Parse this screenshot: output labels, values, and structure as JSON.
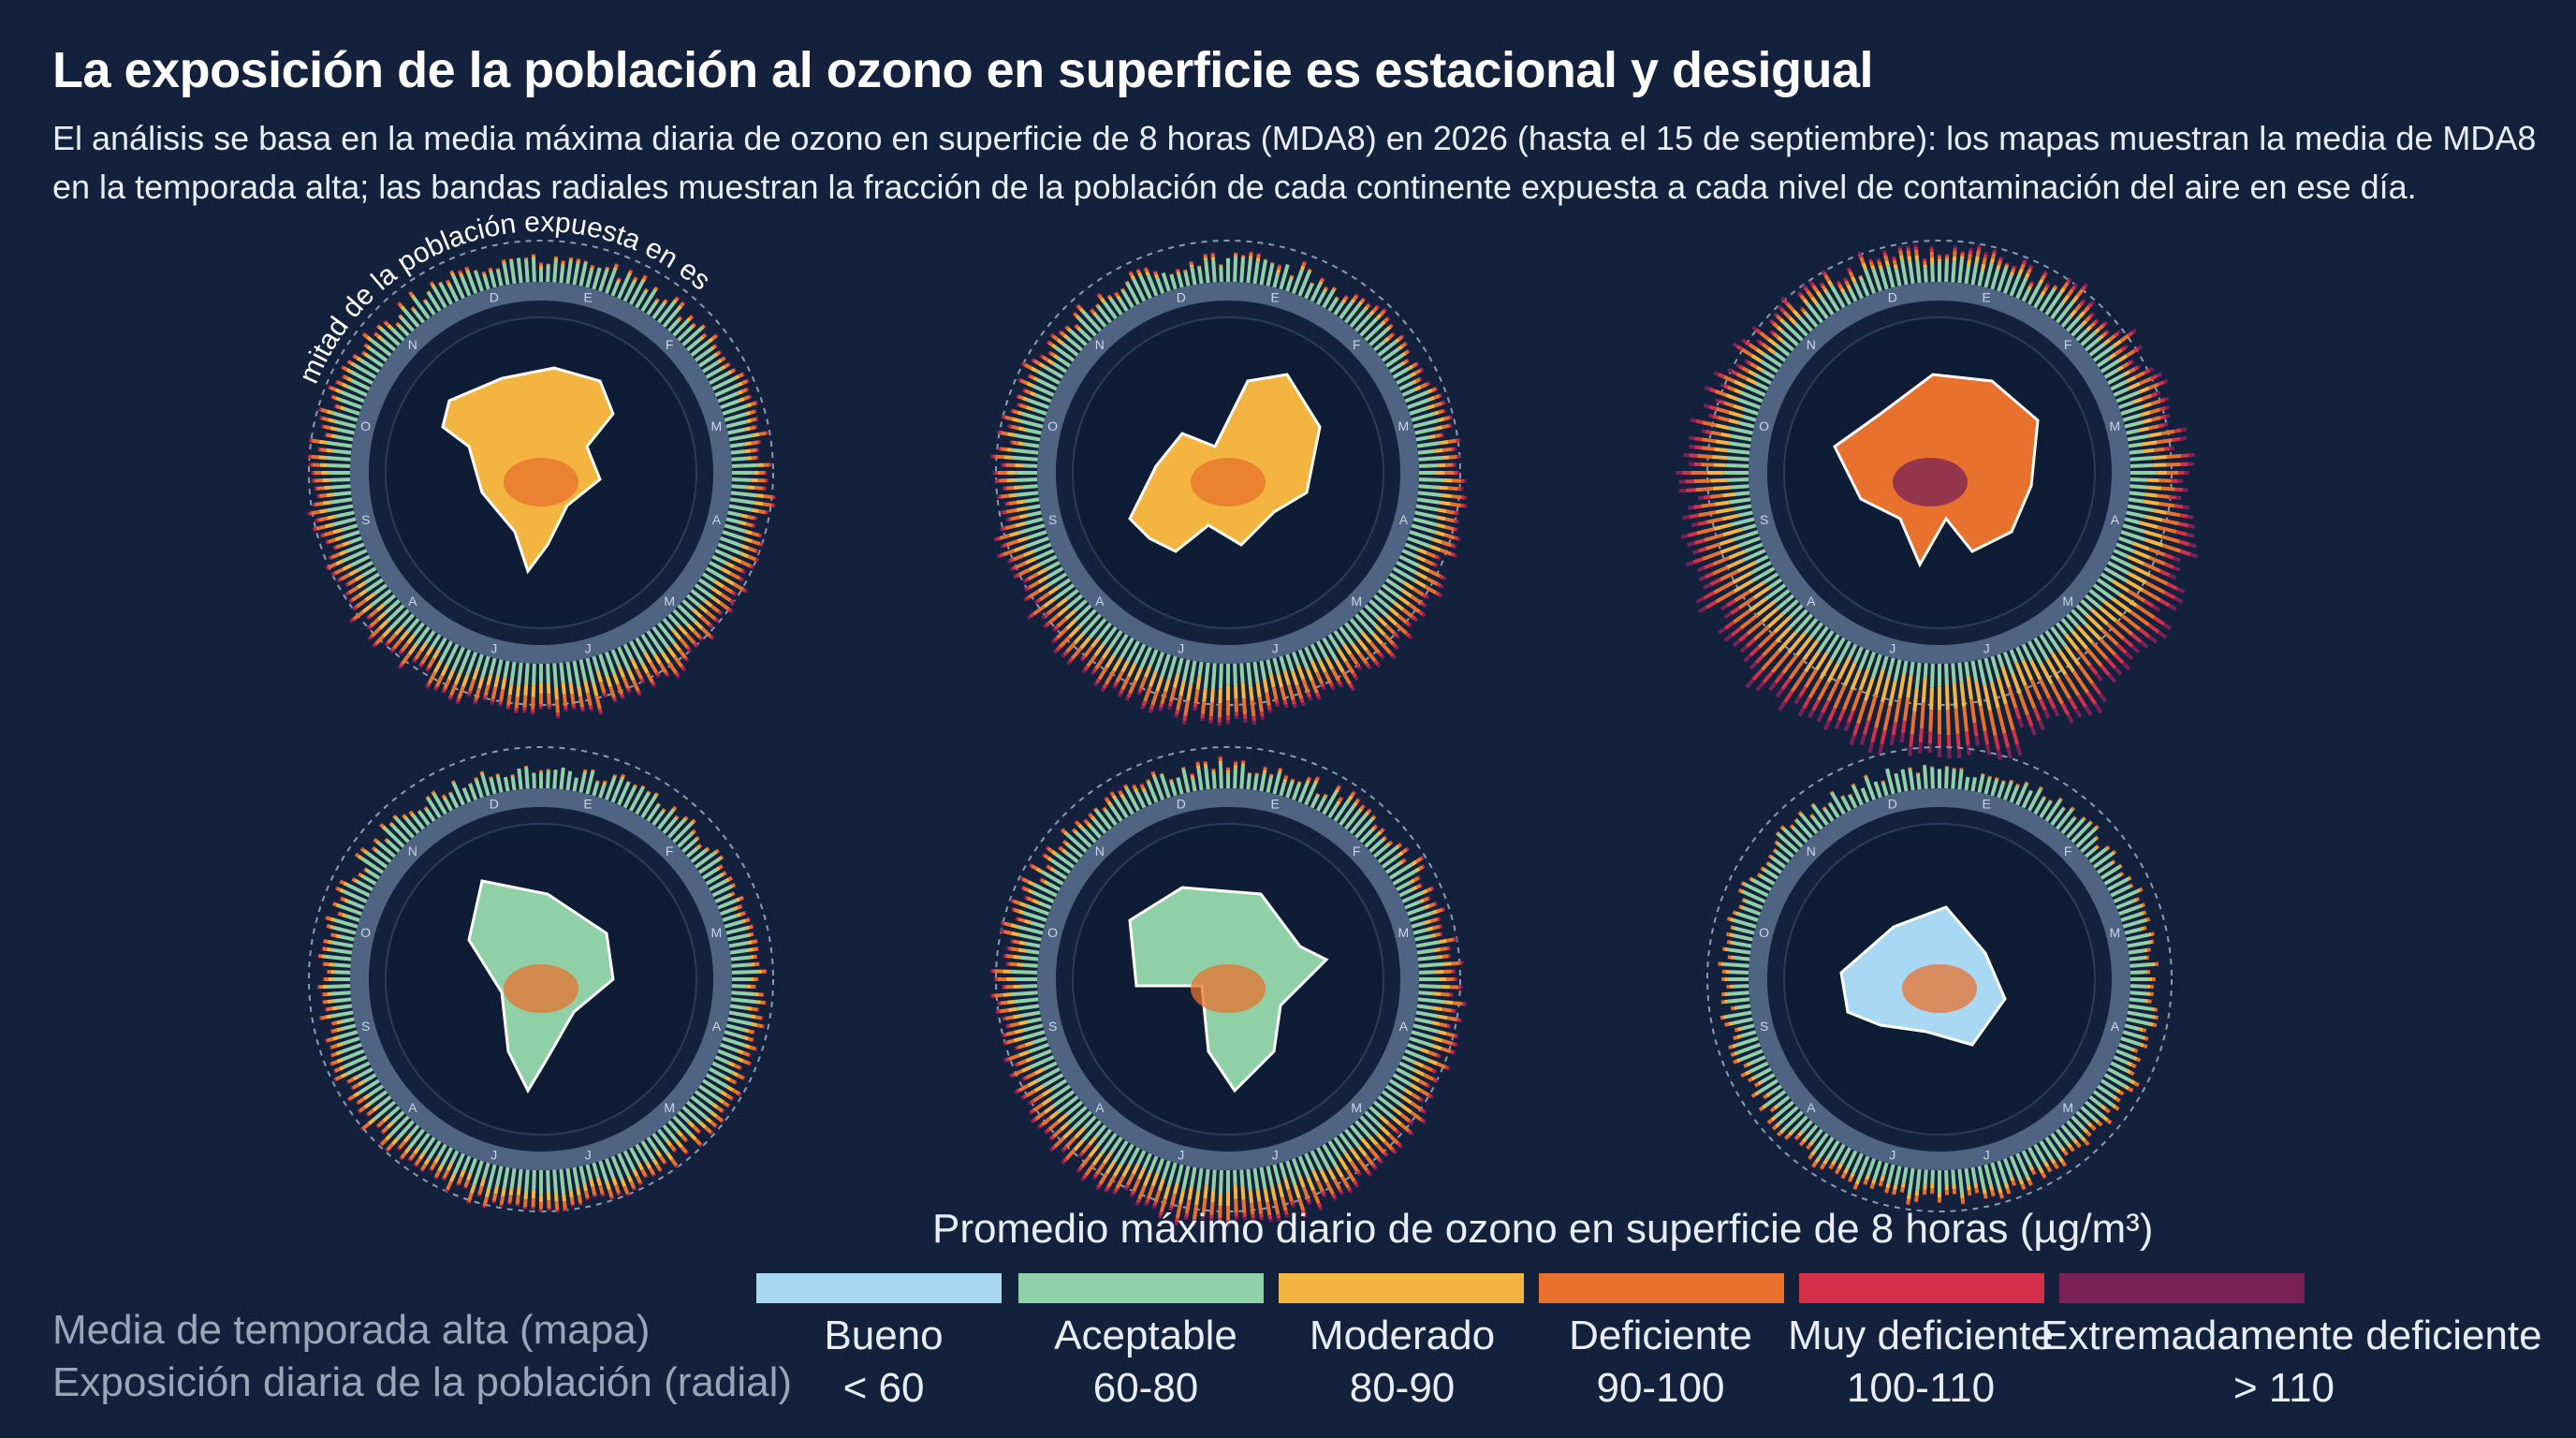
{
  "title": "La exposición de la población al ozono en superficie es estacional y desigual",
  "subtitle": "El análisis se basa en la media máxima diaria de ozono en superficie de 8 horas (MDA8) en 2026 (hasta el 15 de septiembre): los mapas muestran la media de MDA8 en la temporada alta; las bandas radiales muestran la fracción de la población de cada continente expuesta a cada nivel de contaminación del aire en ese día.",
  "radial_annotation": "mitad de la población expuesta en ese día",
  "month_letters": [
    "E",
    "F",
    "M",
    "A",
    "M",
    "J",
    "J",
    "A",
    "S",
    "O",
    "N",
    "D"
  ],
  "colors": {
    "background": "#13213d",
    "inner_disc": "#0f1c36",
    "ring": "#5a6f8f",
    "bueno": "#a9d9f2",
    "aceptable": "#8fd0a6",
    "moderado": "#f3b53f",
    "deficiente": "#e8712e",
    "muy_deficiente": "#d4304b",
    "extremadamente_deficiente": "#7a2157"
  },
  "panels": [
    {
      "continent_shape": "north-america-map",
      "intensity": 0.45
    },
    {
      "continent_shape": "europe-map",
      "intensity": 0.55
    },
    {
      "continent_shape": "asia-map",
      "intensity": 0.95
    },
    {
      "continent_shape": "south-america-map",
      "intensity": 0.3
    },
    {
      "continent_shape": "africa-map",
      "intensity": 0.5
    },
    {
      "continent_shape": "oceania-map",
      "intensity": 0.2
    }
  ],
  "legend": {
    "title": "Promedio máximo diario de ozono en superficie de 8 horas (µg/m³)",
    "left_line1": "Media de temporada alta (mapa)",
    "left_line2": "Exposición diaria de la población (radial)",
    "categories": [
      {
        "name": "Bueno",
        "range": "< 60",
        "color": "#a9d9f2"
      },
      {
        "name": "Aceptable",
        "range": "60-80",
        "color": "#8fd0a6"
      },
      {
        "name": "Moderado",
        "range": "80-90",
        "color": "#f3b53f"
      },
      {
        "name": "Deficiente",
        "range": "90-100",
        "color": "#e8712e"
      },
      {
        "name": "Muy deficiente",
        "range": "100-110",
        "color": "#d4304b"
      },
      {
        "name": "Extremadamente deficiente",
        "range": "> 110",
        "color": "#7a2157"
      }
    ]
  }
}
